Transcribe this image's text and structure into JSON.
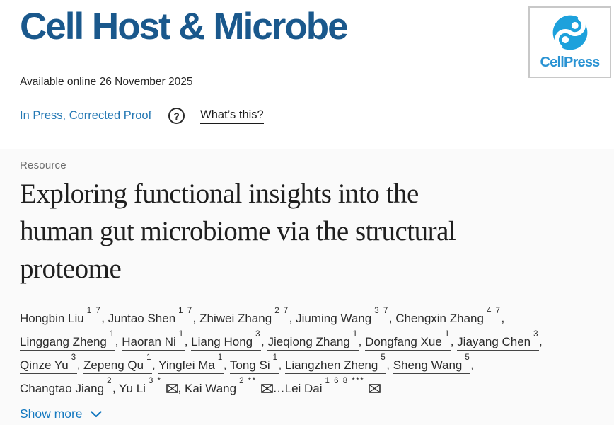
{
  "journal": {
    "name": "Cell Host & Microbe",
    "publisher_logo_text": "CellPress"
  },
  "meta": {
    "available_online": "Available online 26 November 2025"
  },
  "status": {
    "label": "In Press, Corrected Proof",
    "help_glyph": "?",
    "help_link": "What’s this?"
  },
  "article": {
    "type_label": "Resource",
    "title": "Exploring functional insights into the human gut microbiome via the structural proteome",
    "title_lines": [
      "Exploring functional insights into the",
      "human gut microbiome via the structural",
      "proteome"
    ],
    "author_lines": [
      [
        {
          "type": "author",
          "name": "Hongbin Liu",
          "sup": "1 7"
        },
        {
          "type": "text",
          "text": ", "
        },
        {
          "type": "author",
          "name": "Juntao Shen",
          "sup": "1 7"
        },
        {
          "type": "text",
          "text": ", "
        },
        {
          "type": "author",
          "name": "Zhiwei Zhang",
          "sup": "2 7"
        },
        {
          "type": "text",
          "text": ", "
        },
        {
          "type": "author",
          "name": "Jiuming Wang",
          "sup": "3 7"
        },
        {
          "type": "text",
          "text": ", "
        },
        {
          "type": "author",
          "name": "Chengxin Zhang",
          "sup": "4 7"
        },
        {
          "type": "text",
          "text": ","
        }
      ],
      [
        {
          "type": "author",
          "name": "Linggang Zheng",
          "sup": "1"
        },
        {
          "type": "text",
          "text": ", "
        },
        {
          "type": "author",
          "name": "Haoran Ni",
          "sup": "1"
        },
        {
          "type": "text",
          "text": ", "
        },
        {
          "type": "author",
          "name": "Liang Hong",
          "sup": "3"
        },
        {
          "type": "text",
          "text": ", "
        },
        {
          "type": "author",
          "name": "Jieqiong Zhang",
          "sup": "1"
        },
        {
          "type": "text",
          "text": ", "
        },
        {
          "type": "author",
          "name": "Dongfang Xue",
          "sup": "1"
        },
        {
          "type": "text",
          "text": ", "
        },
        {
          "type": "author",
          "name": "Jiayang Chen",
          "sup": "3"
        },
        {
          "type": "text",
          "text": ","
        }
      ],
      [
        {
          "type": "author",
          "name": "Qinze Yu",
          "sup": "3"
        },
        {
          "type": "text",
          "text": ", "
        },
        {
          "type": "author",
          "name": "Zepeng Qu",
          "sup": "1"
        },
        {
          "type": "text",
          "text": ", "
        },
        {
          "type": "author",
          "name": "Yingfei Ma",
          "sup": "1"
        },
        {
          "type": "text",
          "text": ", "
        },
        {
          "type": "author",
          "name": "Tong Si",
          "sup": "1"
        },
        {
          "type": "text",
          "text": ", "
        },
        {
          "type": "author",
          "name": "Liangzhen Zheng",
          "sup": "5"
        },
        {
          "type": "text",
          "text": ", "
        },
        {
          "type": "author",
          "name": "Sheng Wang",
          "sup": "5"
        },
        {
          "type": "text",
          "text": ","
        }
      ],
      [
        {
          "type": "author",
          "name": "Changtao Jiang",
          "sup": "2"
        },
        {
          "type": "text",
          "text": ", "
        },
        {
          "type": "author",
          "name": "Yu Li",
          "sup": "3 *",
          "email": true
        },
        {
          "type": "text",
          "text": ", "
        },
        {
          "type": "author",
          "name": "Kai Wang",
          "sup": "2 **",
          "email": true
        },
        {
          "type": "text",
          "text": "…"
        },
        {
          "type": "author",
          "name": "Lei Dai",
          "sup": "1 6 8 ***",
          "email": true
        }
      ]
    ],
    "show_more_label": "Show more"
  },
  "colors": {
    "journal_title_blue": "#1a588c",
    "status_link_blue": "#2478b4",
    "show_more_blue": "#1579c0",
    "logo_swirl_blue": "#1da1dc",
    "logo_text_blue": "#2a93d3",
    "section_background": "#fafafa",
    "text_dark": "#1c1c1c",
    "muted_gray": "#6d6d6d"
  }
}
